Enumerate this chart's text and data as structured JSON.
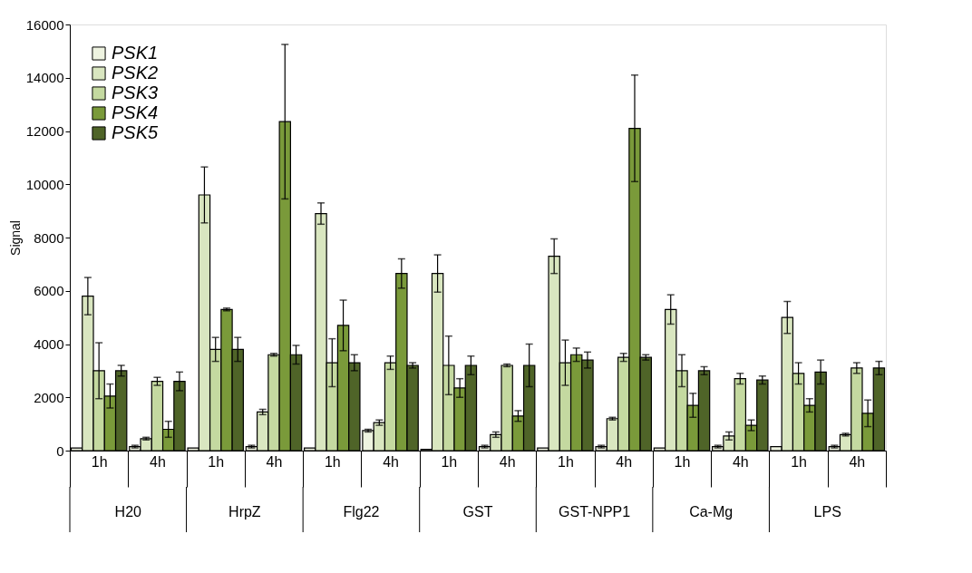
{
  "chart_data": {
    "type": "bar",
    "ylabel": "Signal",
    "categories": [
      "1h",
      "4h",
      "1h",
      "4h",
      "1h",
      "4h",
      "1h",
      "4h",
      "1h",
      "4h",
      "1h",
      "4h",
      "1h",
      "4h"
    ],
    "annotations": [
      "H20",
      "HrpZ",
      "Flg22",
      "GST",
      "GST-NPP1",
      "Ca-Mg",
      "LPS"
    ],
    "series": [
      {
        "name": "PSK1",
        "color": "#eef3e0",
        "values": [
          100,
          150,
          100,
          150,
          100,
          750,
          50,
          150,
          100,
          150,
          100,
          150,
          150,
          150
        ],
        "errors": [
          null,
          50,
          null,
          50,
          null,
          50,
          null,
          50,
          null,
          50,
          null,
          50,
          null,
          50
        ]
      },
      {
        "name": "PSK2",
        "color": "#d9e6c0",
        "values": [
          5800,
          450,
          9600,
          1450,
          8900,
          1050,
          6650,
          600,
          7300,
          1200,
          5300,
          550,
          5000,
          600
        ],
        "errors": [
          700,
          50,
          1050,
          100,
          400,
          100,
          700,
          100,
          650,
          50,
          550,
          150,
          600,
          50
        ]
      },
      {
        "name": "PSK3",
        "color": "#c4d9a0",
        "values": [
          3000,
          2600,
          3800,
          3600,
          3300,
          3300,
          3200,
          3200,
          3300,
          3500,
          3000,
          2700,
          2900,
          3100
        ],
        "errors": [
          1050,
          150,
          450,
          50,
          900,
          250,
          1100,
          50,
          850,
          150,
          600,
          200,
          400,
          200
        ]
      },
      {
        "name": "PSK4",
        "color": "#7a9a3a",
        "values": [
          2050,
          800,
          5300,
          12350,
          4700,
          6650,
          2350,
          1300,
          3600,
          12100,
          1700,
          950,
          1700,
          1400
        ],
        "errors": [
          450,
          300,
          50,
          2900,
          950,
          550,
          350,
          200,
          250,
          2000,
          450,
          200,
          250,
          500
        ]
      },
      {
        "name": "PSK5",
        "color": "#4f6428",
        "values": [
          3000,
          2600,
          3800,
          3600,
          3300,
          3200,
          3200,
          3200,
          3400,
          3500,
          3000,
          2650,
          2950,
          3100
        ],
        "errors": [
          200,
          350,
          450,
          350,
          300,
          100,
          350,
          800,
          300,
          100,
          150,
          150,
          450,
          250
        ]
      }
    ],
    "ylim": [
      0,
      16000
    ],
    "yticks": [
      0,
      2000,
      4000,
      6000,
      8000,
      10000,
      12000,
      14000,
      16000
    ],
    "grid": false,
    "legend": "top left"
  }
}
